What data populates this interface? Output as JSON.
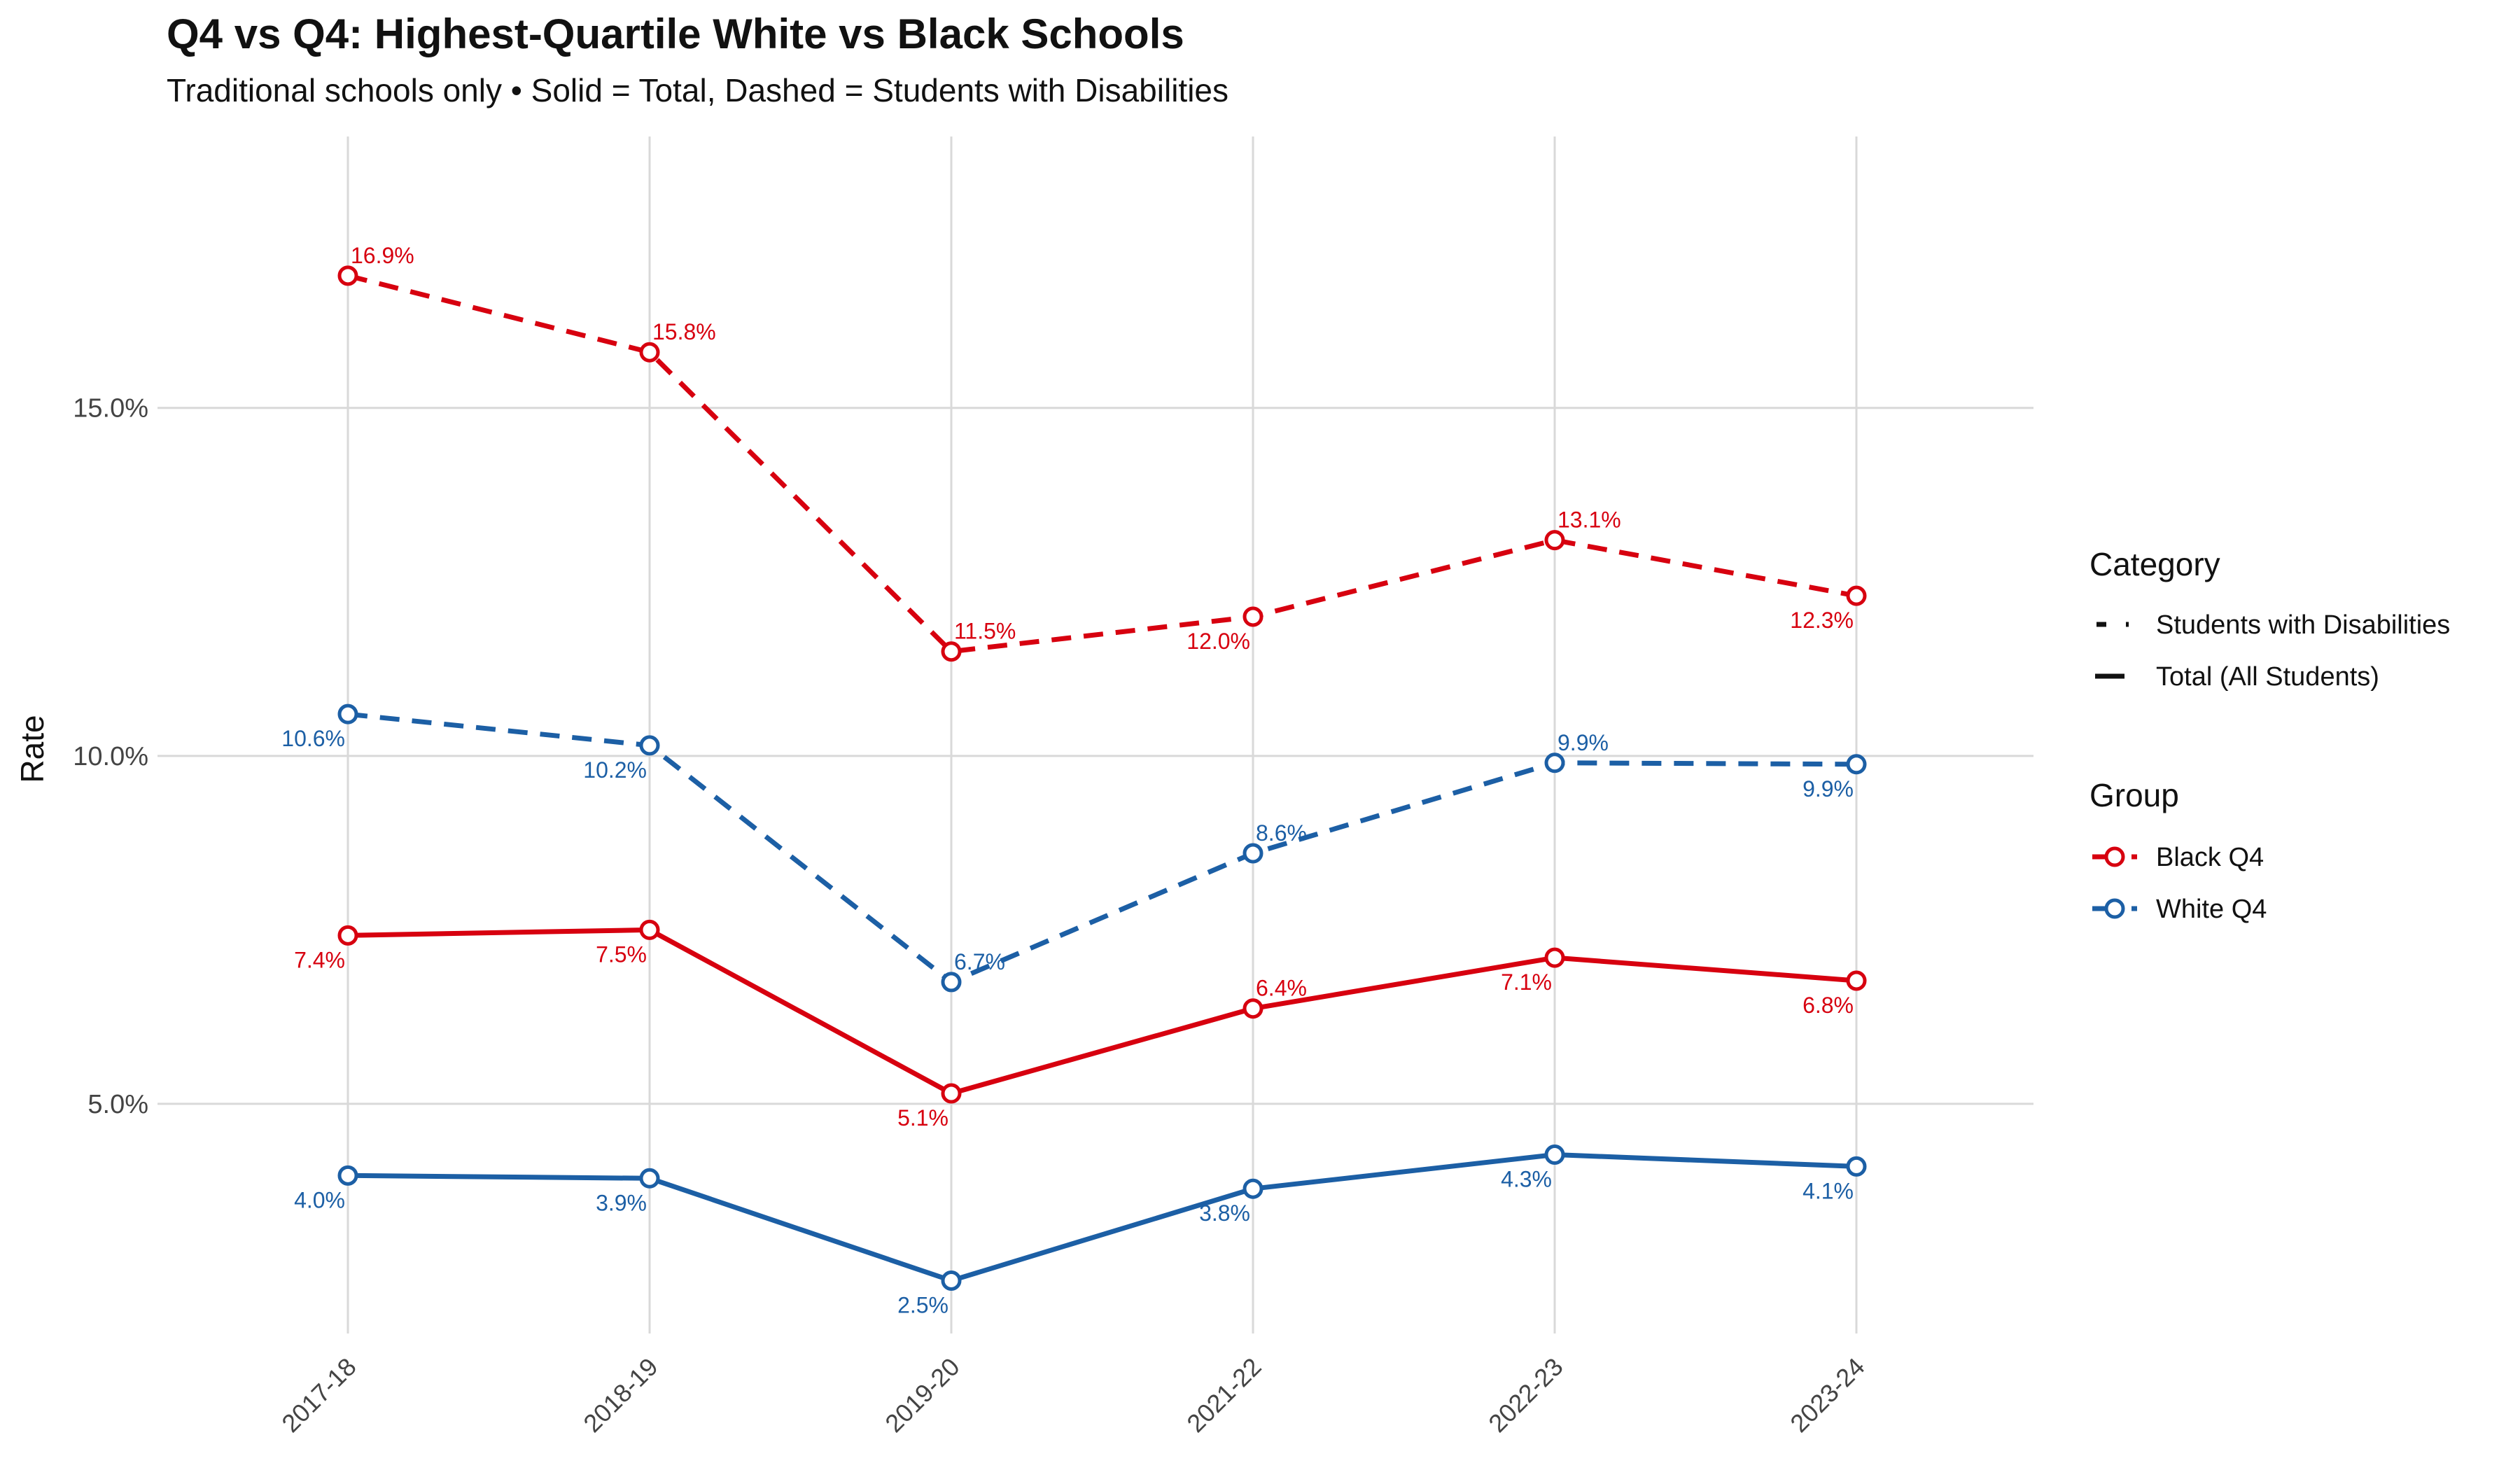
{
  "chart_data": {
    "type": "line",
    "title": "Q4 vs Q4: Highest-Quartile White vs Black Schools",
    "subtitle": "Traditional schools only • Solid = Total, Dashed = Students with Disabilities",
    "xlabel": "",
    "ylabel": "Rate",
    "categories": [
      "2017-18",
      "2018-19",
      "2019-20",
      "2021-22",
      "2022-23",
      "2023-24"
    ],
    "yticks": [
      5.0,
      10.0,
      15.0
    ],
    "ytick_labels": [
      "5.0%",
      "10.0%",
      "15.0%"
    ],
    "ylim": [
      1.7,
      18.9
    ],
    "grid": true,
    "legend_position": "right",
    "legend": {
      "category_title": "Category",
      "category_items": [
        {
          "label": "Students with Disabilities",
          "style": "dashed"
        },
        {
          "label": "Total (All Students)",
          "style": "solid"
        }
      ],
      "group_title": "Group",
      "group_items": [
        {
          "label": "Black Q4",
          "color": "#d7000f"
        },
        {
          "label": "White Q4",
          "color": "#1c5fa5"
        }
      ]
    },
    "series": [
      {
        "group": "Black Q4",
        "category": "Students with Disabilities",
        "color": "#d7000f",
        "dash": true,
        "values": [
          16.9,
          15.8,
          11.5,
          12.0,
          13.1,
          12.3
        ],
        "labels": [
          "16.9%",
          "15.8%",
          "11.5%",
          "12.0%",
          "13.1%",
          "12.3%"
        ],
        "label_pos": [
          "above",
          "above",
          "above",
          "below",
          "above",
          "below"
        ]
      },
      {
        "group": "White Q4",
        "category": "Students with Disabilities",
        "color": "#1c5fa5",
        "dash": true,
        "values": [
          10.6,
          10.15,
          6.75,
          8.6,
          9.9,
          9.88
        ],
        "labels": [
          "10.6%",
          "10.2%",
          "6.7%",
          "8.6%",
          "9.9%",
          "9.9%"
        ],
        "label_pos": [
          "below",
          "below",
          "above",
          "above",
          "above",
          "below"
        ]
      },
      {
        "group": "Black Q4",
        "category": "Total (All Students)",
        "color": "#d7000f",
        "dash": false,
        "values": [
          7.42,
          7.5,
          5.15,
          6.37,
          7.1,
          6.77
        ],
        "labels": [
          "7.4%",
          "7.5%",
          "5.1%",
          "6.4%",
          "7.1%",
          "6.8%"
        ],
        "label_pos": [
          "below",
          "below",
          "below",
          "above",
          "below",
          "below"
        ]
      },
      {
        "group": "White Q4",
        "category": "Total (All Students)",
        "color": "#1c5fa5",
        "dash": false,
        "values": [
          3.97,
          3.93,
          2.46,
          3.78,
          4.27,
          4.1
        ],
        "labels": [
          "4.0%",
          "3.9%",
          "2.5%",
          "3.8%",
          "4.3%",
          "4.1%"
        ],
        "label_pos": [
          "below",
          "below",
          "below",
          "below",
          "below",
          "below"
        ]
      }
    ]
  }
}
